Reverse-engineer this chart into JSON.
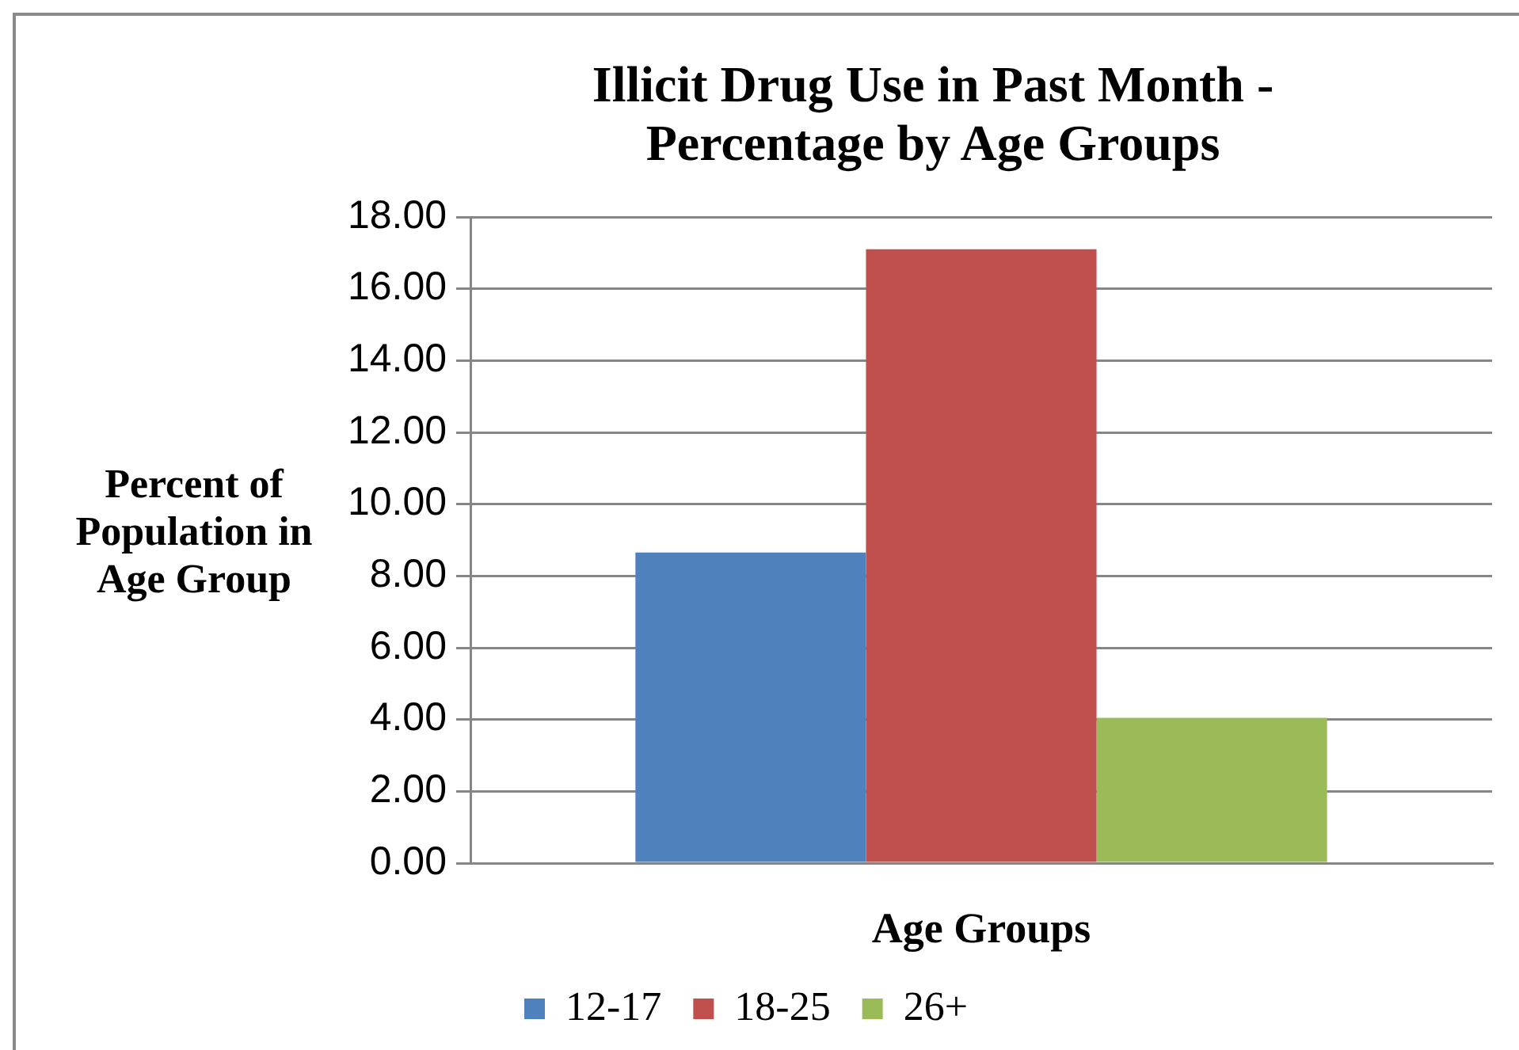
{
  "chart_data": {
    "type": "bar",
    "title": "Illicit Drug Use in Past Month - Percentage by Age Groups",
    "xlabel": "Age Groups",
    "ylabel": "Percent of Population in Age Group",
    "categories": [
      null
    ],
    "series": [
      {
        "name": "12-17",
        "color": "#4f81bd",
        "values": [
          8.65
        ]
      },
      {
        "name": "18-25",
        "color": "#c0504d",
        "values": [
          17.1
        ]
      },
      {
        "name": "26+",
        "color": "#9bbb59",
        "values": [
          4.05
        ]
      }
    ],
    "ylim": [
      0,
      18
    ],
    "yticks": [
      {
        "value": 0,
        "label": "0.00"
      },
      {
        "value": 2,
        "label": "2.00"
      },
      {
        "value": 4,
        "label": "4.00"
      },
      {
        "value": 6,
        "label": "6.00"
      },
      {
        "value": 8,
        "label": "8.00"
      },
      {
        "value": 10,
        "label": "10.00"
      },
      {
        "value": 12,
        "label": "12.00"
      },
      {
        "value": 14,
        "label": "14.00"
      },
      {
        "value": 16,
        "label": "16.00"
      },
      {
        "value": 18,
        "label": "18.00"
      }
    ],
    "grid": "y",
    "legend": "bottom"
  }
}
